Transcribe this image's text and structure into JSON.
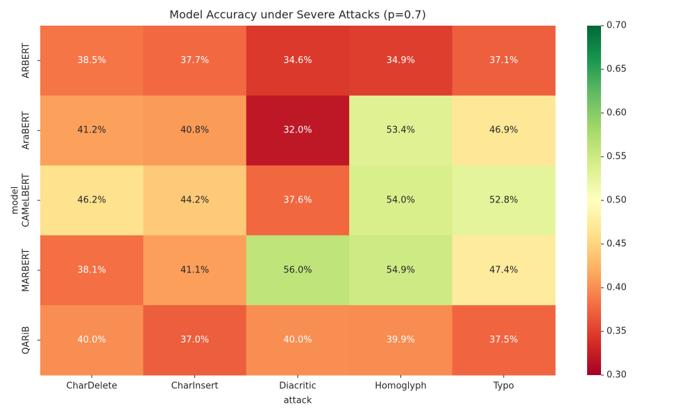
{
  "chart_data": {
    "type": "heatmap",
    "title": "Model Accuracy under Severe Attacks (p=0.7)",
    "xlabel": "attack",
    "ylabel": "model",
    "categories": [
      "CharDelete",
      "CharInsert",
      "Diacritic",
      "Homoglyph",
      "Typo"
    ],
    "y_categories": [
      "ARBERT",
      "AraBERT",
      "CAMeLBERT",
      "MARBERT",
      "QARiB"
    ],
    "values": [
      [
        0.385,
        0.377,
        0.346,
        0.349,
        0.371
      ],
      [
        0.412,
        0.408,
        0.32,
        0.534,
        0.469
      ],
      [
        0.462,
        0.442,
        0.376,
        0.54,
        0.528
      ],
      [
        0.381,
        0.411,
        0.56,
        0.549,
        0.474
      ],
      [
        0.4,
        0.37,
        0.4,
        0.399,
        0.375
      ]
    ],
    "value_labels": [
      [
        "38.5%",
        "37.7%",
        "34.6%",
        "34.9%",
        "37.1%"
      ],
      [
        "41.2%",
        "40.8%",
        "32.0%",
        "53.4%",
        "46.9%"
      ],
      [
        "46.2%",
        "44.2%",
        "37.6%",
        "54.0%",
        "52.8%"
      ],
      [
        "38.1%",
        "41.1%",
        "56.0%",
        "54.9%",
        "47.4%"
      ],
      [
        "40.0%",
        "37.0%",
        "40.0%",
        "39.9%",
        "37.5%"
      ]
    ],
    "colormap": "RdYlGn",
    "clim": [
      0.3,
      0.7
    ],
    "cticks": [
      {
        "value": 0.3,
        "label": "0.30"
      },
      0.35,
      {
        "value": 0.4,
        "label": "0.40"
      },
      0.45,
      {
        "value": 0.5,
        "label": "0.50"
      },
      0.55,
      {
        "value": 0.6,
        "label": "0.60"
      },
      0.65,
      {
        "value": 0.7,
        "label": "0.70"
      }
    ]
  }
}
